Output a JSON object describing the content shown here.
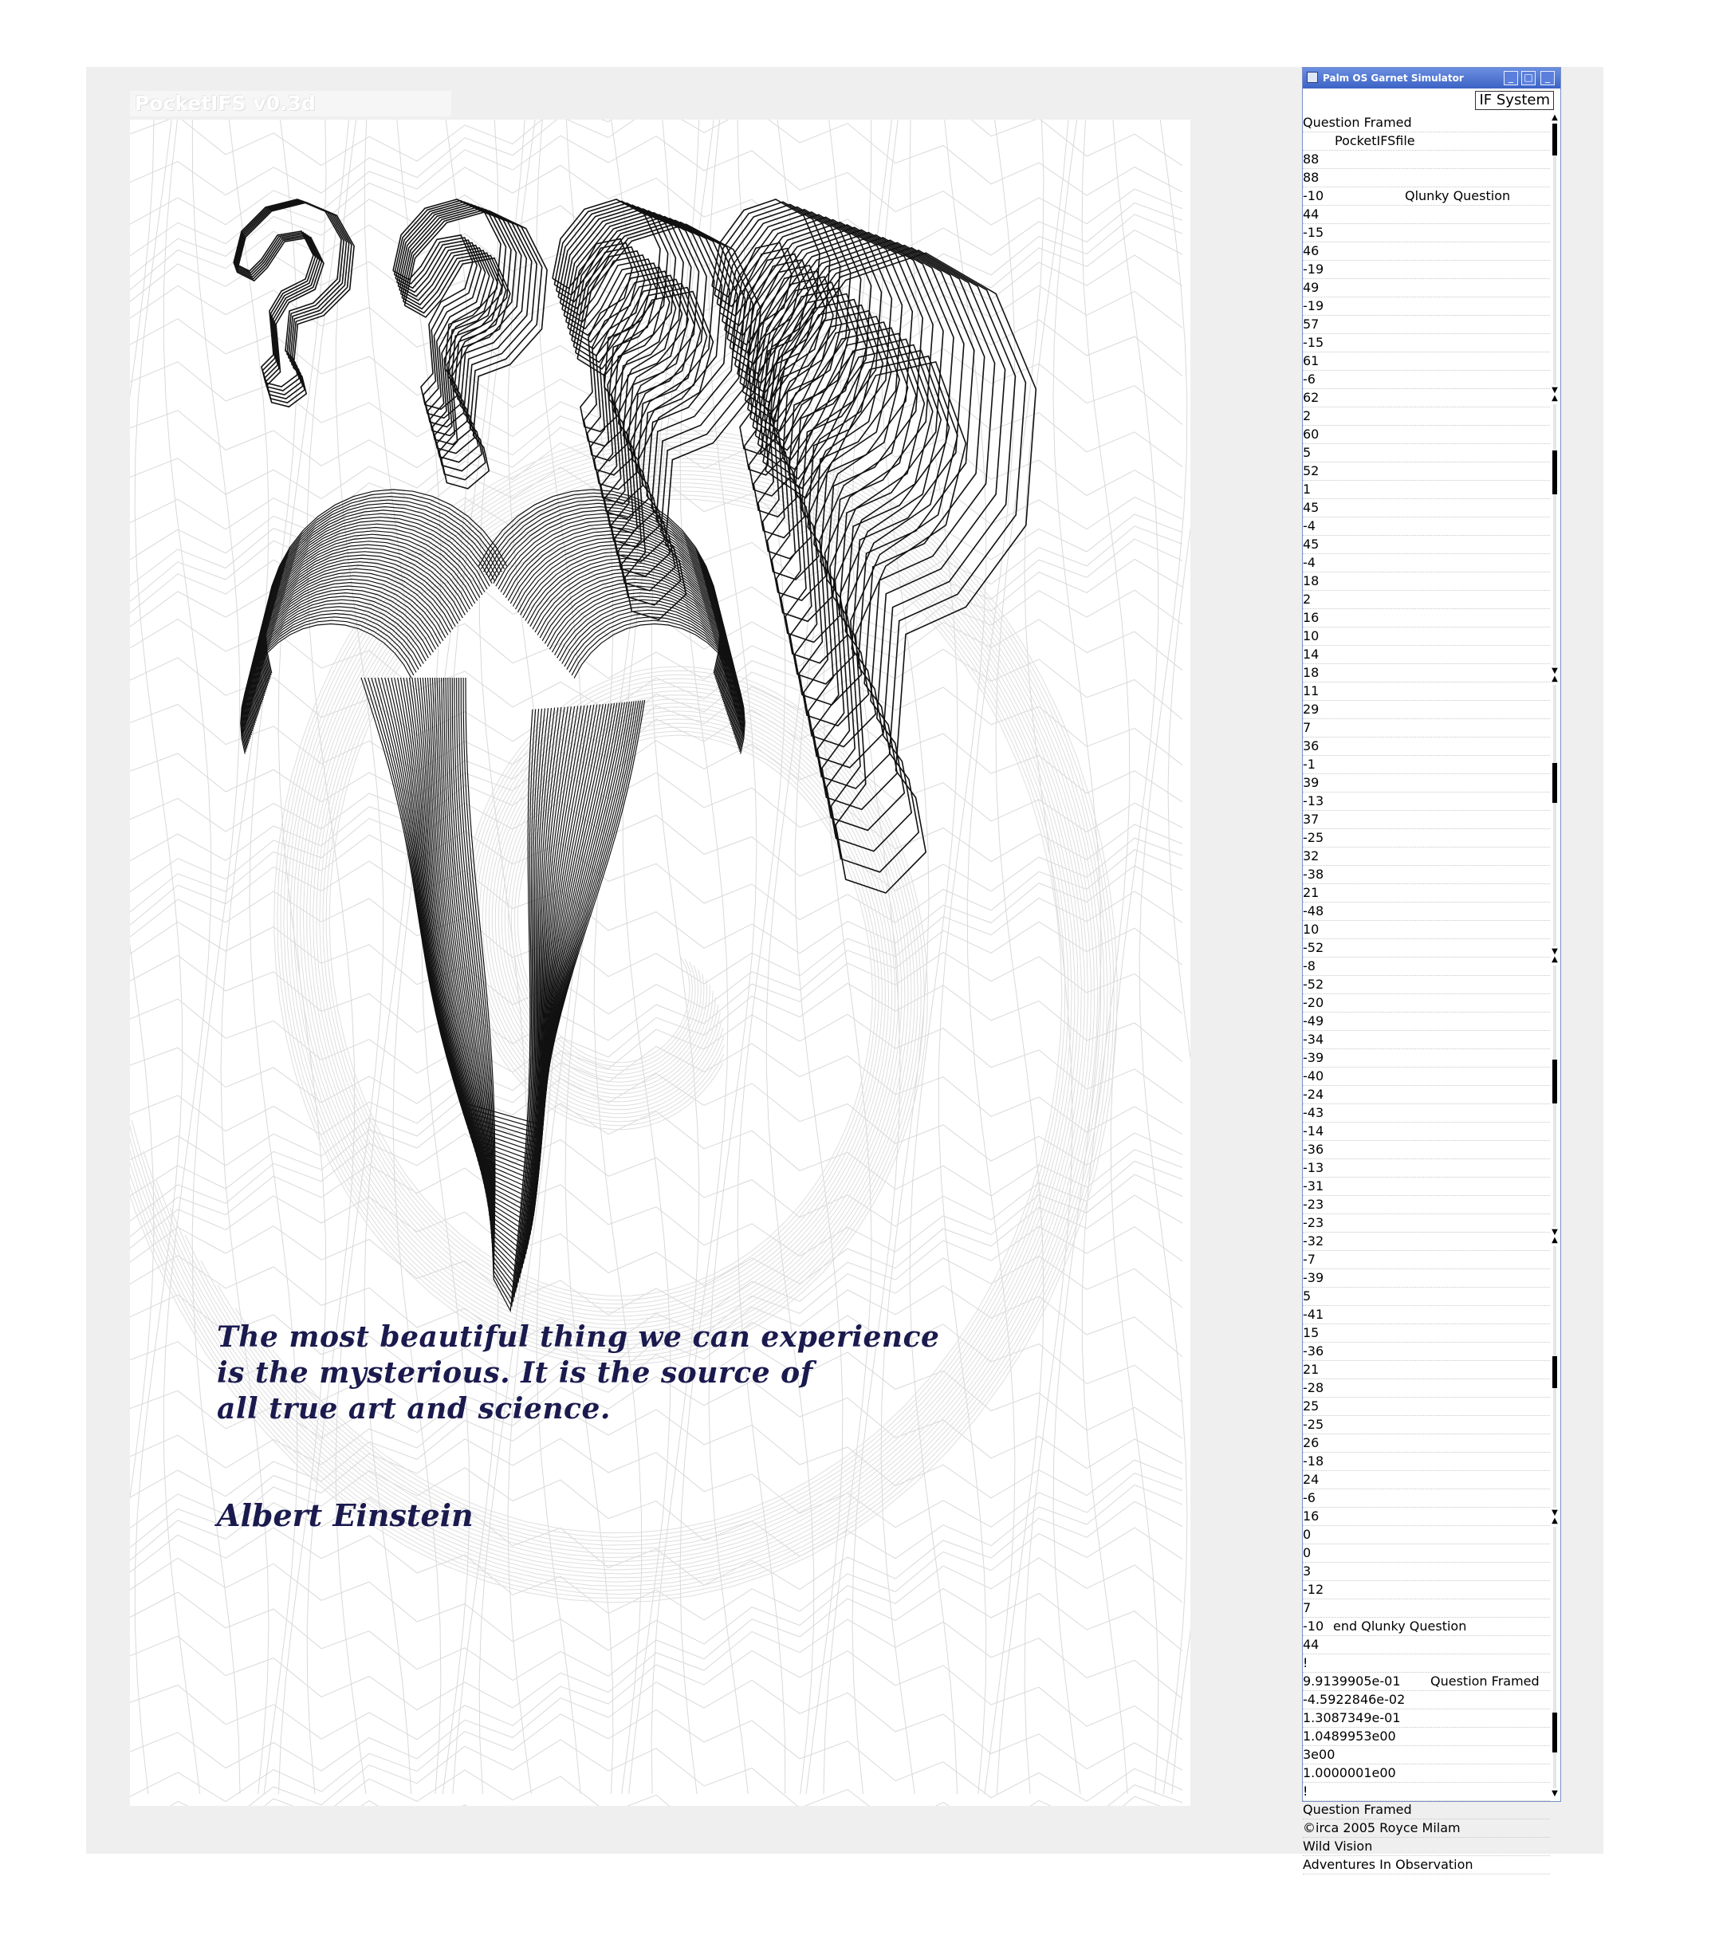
{
  "app": {
    "title": "PocketIFS v0.3d"
  },
  "quote": {
    "lines": [
      "The most beautiful thing we can experience",
      "is the mysterious.  It is the source of",
      "all true art and science."
    ],
    "author": "Albert Einstein"
  },
  "simulator": {
    "window_title": "Palm OS Garnet Simulator",
    "menu_label": "IF System",
    "rows": [
      {
        "v": "Question Framed",
        "n": ""
      },
      {
        "v": "",
        "n": "PocketIFSfile"
      },
      {
        "v": "88",
        "n": ""
      },
      {
        "v": "88",
        "n": ""
      },
      {
        "v": "-10",
        "n": "Qlunky Question"
      },
      {
        "v": "44",
        "n": ""
      },
      {
        "v": "-15",
        "n": ""
      },
      {
        "v": "46",
        "n": ""
      },
      {
        "v": "-19",
        "n": ""
      },
      {
        "v": "49",
        "n": ""
      },
      {
        "v": "-19",
        "n": ""
      },
      {
        "v": "57",
        "n": ""
      },
      {
        "v": "-15",
        "n": ""
      },
      {
        "v": "61",
        "n": ""
      },
      {
        "v": "-6",
        "n": ""
      },
      {
        "v": "62",
        "n": ""
      },
      {
        "v": "2",
        "n": ""
      },
      {
        "v": "60",
        "n": ""
      },
      {
        "v": "5",
        "n": ""
      },
      {
        "v": "52",
        "n": ""
      },
      {
        "v": "1",
        "n": ""
      },
      {
        "v": "45",
        "n": ""
      },
      {
        "v": "-4",
        "n": ""
      },
      {
        "v": "45",
        "n": ""
      },
      {
        "v": "-4",
        "n": ""
      },
      {
        "v": "18",
        "n": ""
      },
      {
        "v": "2",
        "n": ""
      },
      {
        "v": "16",
        "n": ""
      },
      {
        "v": "10",
        "n": ""
      },
      {
        "v": "14",
        "n": ""
      },
      {
        "v": "18",
        "n": ""
      },
      {
        "v": "11",
        "n": ""
      },
      {
        "v": "29",
        "n": ""
      },
      {
        "v": "7",
        "n": ""
      },
      {
        "v": "36",
        "n": ""
      },
      {
        "v": "-1",
        "n": ""
      },
      {
        "v": "39",
        "n": ""
      },
      {
        "v": "-13",
        "n": ""
      },
      {
        "v": "37",
        "n": ""
      },
      {
        "v": "-25",
        "n": ""
      },
      {
        "v": "32",
        "n": ""
      },
      {
        "v": "-38",
        "n": ""
      },
      {
        "v": "21",
        "n": ""
      },
      {
        "v": "-48",
        "n": ""
      },
      {
        "v": "10",
        "n": ""
      },
      {
        "v": "-52",
        "n": ""
      },
      {
        "v": "-8",
        "n": ""
      },
      {
        "v": "-52",
        "n": ""
      },
      {
        "v": "-20",
        "n": ""
      },
      {
        "v": "-49",
        "n": ""
      },
      {
        "v": "-34",
        "n": ""
      },
      {
        "v": "-39",
        "n": ""
      },
      {
        "v": "-40",
        "n": ""
      },
      {
        "v": "-24",
        "n": ""
      },
      {
        "v": "-43",
        "n": ""
      },
      {
        "v": "-14",
        "n": ""
      },
      {
        "v": "-36",
        "n": ""
      },
      {
        "v": "-13",
        "n": ""
      },
      {
        "v": "-31",
        "n": ""
      },
      {
        "v": "-23",
        "n": ""
      },
      {
        "v": "-23",
        "n": ""
      },
      {
        "v": "-32",
        "n": ""
      },
      {
        "v": "-7",
        "n": ""
      },
      {
        "v": "-39",
        "n": ""
      },
      {
        "v": "5",
        "n": ""
      },
      {
        "v": "-41",
        "n": ""
      },
      {
        "v": "15",
        "n": ""
      },
      {
        "v": "-36",
        "n": ""
      },
      {
        "v": "21",
        "n": ""
      },
      {
        "v": "-28",
        "n": ""
      },
      {
        "v": "25",
        "n": ""
      },
      {
        "v": "-25",
        "n": ""
      },
      {
        "v": "26",
        "n": ""
      },
      {
        "v": "-18",
        "n": ""
      },
      {
        "v": "24",
        "n": ""
      },
      {
        "v": "-6",
        "n": ""
      },
      {
        "v": "16",
        "n": ""
      },
      {
        "v": "0",
        "n": ""
      },
      {
        "v": "0",
        "n": ""
      },
      {
        "v": "3",
        "n": ""
      },
      {
        "v": "-12",
        "n": ""
      },
      {
        "v": "7",
        "n": ""
      },
      {
        "v": "-10",
        "n": "end Qlunky Question"
      },
      {
        "v": "44",
        "n": ""
      },
      {
        "v": "!",
        "n": ""
      },
      {
        "v": "9.9139905e-01",
        "n": "Question Framed"
      },
      {
        "v": "-4.5922846e-02",
        "n": ""
      },
      {
        "v": "1.3087349e-01",
        "n": ""
      },
      {
        "v": "1.0489953e00",
        "n": ""
      },
      {
        "v": "3e00",
        "n": ""
      },
      {
        "v": "1.0000001e00",
        "n": ""
      },
      {
        "v": "!",
        "n": ""
      },
      {
        "v": "Question Framed",
        "n": ""
      },
      {
        "v": "©irca 2005  Royce Milam",
        "n": ""
      },
      {
        "v": "Wild Vision",
        "n": ""
      },
      {
        "v": "Adventures In Observation",
        "n": ""
      }
    ]
  }
}
